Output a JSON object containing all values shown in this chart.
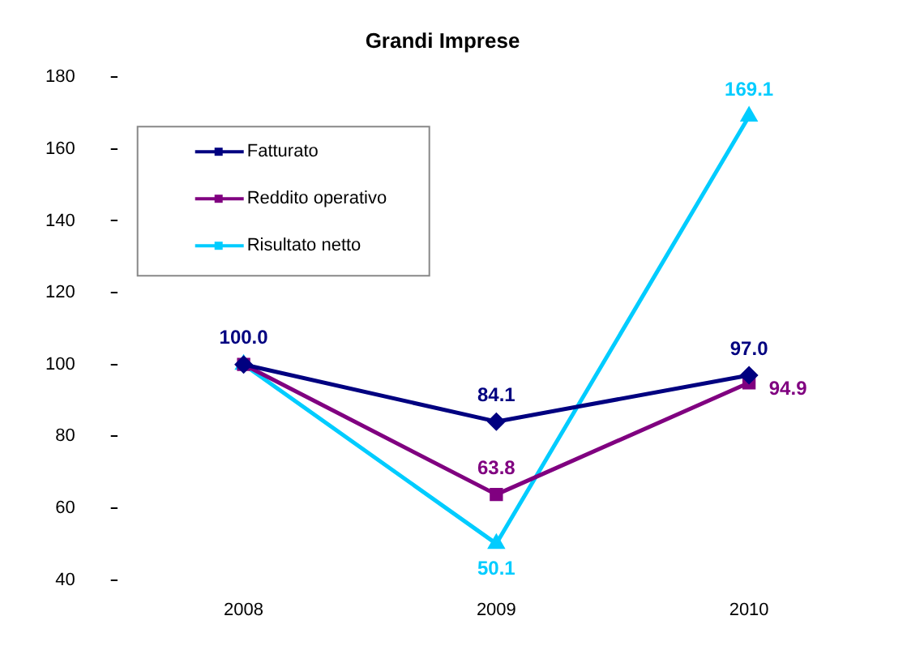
{
  "chart_data": {
    "type": "line",
    "title": "Grandi Imprese",
    "categories": [
      "2008",
      "2009",
      "2010"
    ],
    "series": [
      {
        "name": "Fatturato",
        "color": "#000080",
        "marker": "diamond",
        "values": [
          100.0,
          84.1,
          97.0
        ],
        "value_labels": [
          "100.0",
          "84.1",
          "97.0"
        ]
      },
      {
        "name": "Reddito operativo",
        "color": "#800080",
        "marker": "square",
        "values": [
          100.0,
          63.8,
          94.9
        ],
        "value_labels": [
          null,
          "63.8",
          "94.9"
        ]
      },
      {
        "name": "Risultato netto",
        "color": "#00ccff",
        "marker": "triangle",
        "values": [
          100.0,
          50.1,
          169.1
        ],
        "value_labels": [
          null,
          "50.1",
          "169.1"
        ]
      }
    ],
    "ylim": [
      40,
      180
    ],
    "yticks": [
      40,
      60,
      80,
      100,
      120,
      140,
      160,
      180
    ],
    "grid": false,
    "legend": "top left"
  }
}
